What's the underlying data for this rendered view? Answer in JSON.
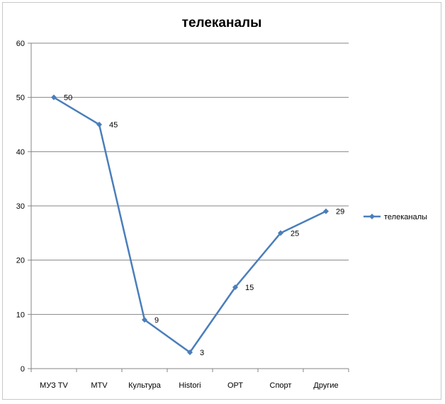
{
  "chart_data": {
    "type": "line",
    "title": "телеканалы",
    "xlabel": "",
    "ylabel": "",
    "categories": [
      "МУЗ TV",
      "MTV",
      "Культура",
      "Histori",
      "ОРТ",
      "Спорт",
      "Другие"
    ],
    "series": [
      {
        "name": "телеканалы",
        "values": [
          50,
          45,
          9,
          3,
          15,
          25,
          29
        ],
        "color": "#4a7ebb"
      }
    ],
    "ylim": [
      0,
      60
    ],
    "yticks": [
      0,
      10,
      20,
      30,
      40,
      50,
      60
    ],
    "grid": true,
    "legend": "right",
    "data_labels": true,
    "marker": "diamond"
  }
}
